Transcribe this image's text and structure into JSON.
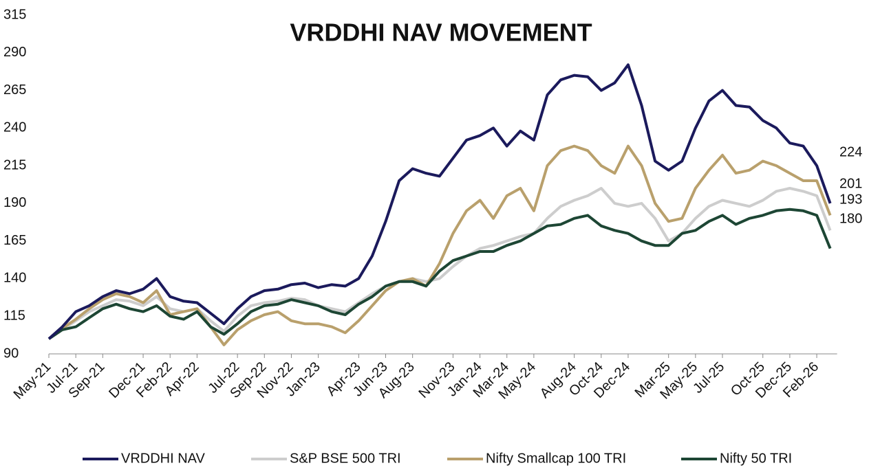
{
  "chart_data": {
    "type": "line",
    "title": "VRDDHI NAV MOVEMENT",
    "categories": [
      "May-21",
      null,
      "Jul-21",
      null,
      "Sep-21",
      null,
      null,
      "Dec-21",
      null,
      "Feb-22",
      null,
      "Apr-22",
      null,
      null,
      "Jul-22",
      null,
      "Sep-22",
      null,
      "Nov-22",
      null,
      "Jan-23",
      null,
      null,
      "Apr-23",
      null,
      "Jun-23",
      null,
      "Aug-23",
      null,
      null,
      "Nov-23",
      null,
      "Jan-24",
      null,
      "Mar-24",
      null,
      "May-24",
      null,
      null,
      "Aug-24",
      null,
      "Oct-24",
      null,
      "Dec-24",
      null,
      null,
      "Mar-25",
      null,
      "May-25",
      null,
      "Jul-25",
      null,
      null,
      "Oct-25",
      null,
      "Dec-25",
      null,
      "Feb-26",
      null
    ],
    "series": [
      {
        "name": "VRDDHI NAV",
        "color": "#1b1a5c",
        "values": [
          100,
          108,
          118,
          122,
          128,
          132,
          130,
          133,
          140,
          128,
          125,
          124,
          117,
          110,
          120,
          128,
          132,
          133,
          136,
          137,
          134,
          136,
          135,
          140,
          155,
          178,
          205,
          213,
          210,
          208,
          220,
          232,
          235,
          240,
          228,
          238,
          232,
          262,
          272,
          275,
          274,
          265,
          270,
          282,
          255,
          218,
          212,
          218,
          240,
          258,
          265,
          255,
          254,
          245,
          240,
          230,
          228,
          215,
          190
        ]
      },
      {
        "name": "S&P BSE 500 TRI",
        "color": "#cdcdcd",
        "values": [
          100,
          106,
          112,
          118,
          122,
          126,
          125,
          122,
          128,
          120,
          118,
          120,
          112,
          105,
          115,
          122,
          124,
          125,
          127,
          126,
          122,
          120,
          118,
          124,
          130,
          135,
          138,
          140,
          138,
          140,
          148,
          155,
          160,
          162,
          165,
          168,
          170,
          180,
          188,
          192,
          195,
          200,
          190,
          188,
          190,
          180,
          165,
          170,
          180,
          188,
          192,
          190,
          188,
          192,
          198,
          200,
          198,
          195,
          172
        ]
      },
      {
        "name": "Nifty Smallcap 100 TRI",
        "color": "#b9a06c",
        "values": [
          100,
          107,
          113,
          120,
          126,
          130,
          128,
          124,
          132,
          116,
          118,
          120,
          108,
          96,
          106,
          112,
          116,
          118,
          112,
          110,
          110,
          108,
          104,
          112,
          122,
          132,
          138,
          140,
          135,
          150,
          170,
          185,
          192,
          180,
          195,
          200,
          185,
          215,
          225,
          228,
          225,
          215,
          210,
          228,
          215,
          190,
          178,
          180,
          200,
          212,
          222,
          210,
          212,
          218,
          215,
          210,
          205,
          205,
          182
        ]
      },
      {
        "name": "Nifty 50 TRI",
        "color": "#1d4634",
        "values": [
          100,
          106,
          108,
          114,
          120,
          123,
          120,
          118,
          122,
          115,
          113,
          118,
          108,
          103,
          110,
          118,
          122,
          123,
          126,
          124,
          122,
          118,
          116,
          123,
          128,
          135,
          138,
          138,
          135,
          145,
          152,
          155,
          158,
          158,
          162,
          165,
          170,
          175,
          176,
          180,
          182,
          175,
          172,
          170,
          165,
          162,
          162,
          170,
          172,
          178,
          182,
          176,
          180,
          182,
          185,
          186,
          185,
          182,
          160
        ]
      }
    ],
    "ylim": [
      90,
      315
    ],
    "yticks": [
      90,
      115,
      140,
      165,
      190,
      215,
      240,
      265,
      290,
      315
    ],
    "annotations": [
      "224",
      "201",
      "193",
      "180"
    ],
    "grid": false,
    "legend": "bottom"
  }
}
